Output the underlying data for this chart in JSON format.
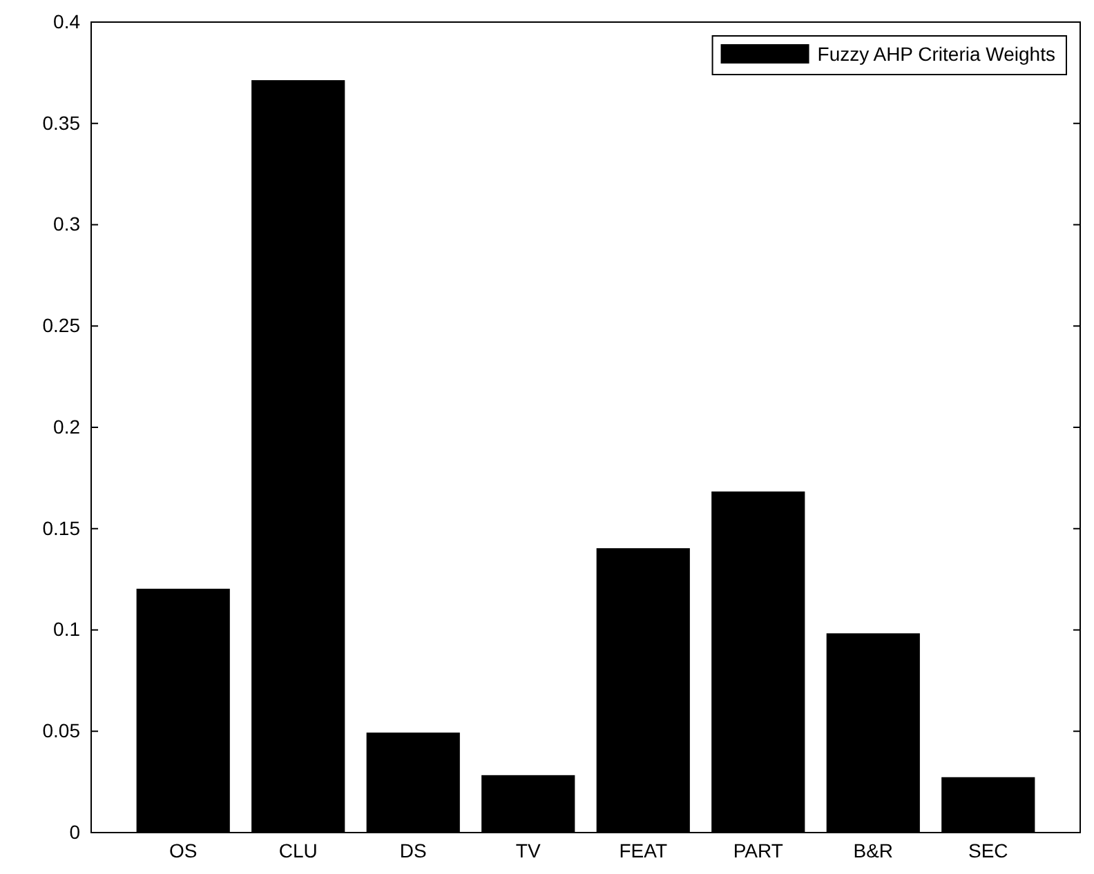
{
  "chart_data": {
    "type": "bar",
    "categories": [
      "OS",
      "CLU",
      "DS",
      "TV",
      "FEAT",
      "PART",
      "B&R",
      "SEC"
    ],
    "series": [
      {
        "name": "Fuzzy AHP Criteria Weights",
        "color": "#000000",
        "values": [
          0.12,
          0.371,
          0.049,
          0.028,
          0.14,
          0.168,
          0.098,
          0.027
        ]
      }
    ],
    "ylim": [
      0,
      0.4
    ],
    "yticks": [
      0,
      0.05,
      0.1,
      0.15,
      0.2,
      0.25,
      0.3,
      0.35,
      0.4
    ],
    "legend": "top right"
  }
}
